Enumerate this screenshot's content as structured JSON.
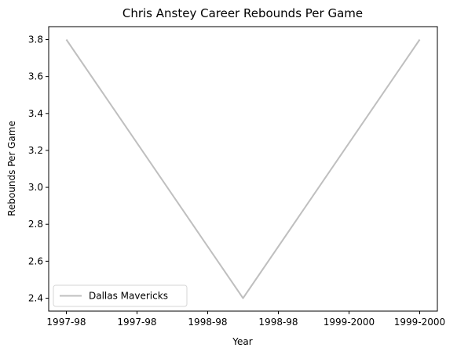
{
  "chart_data": {
    "type": "line",
    "title": "Chris Anstey Career Rebounds Per Game",
    "xlabel": "Year",
    "ylabel": "Rebounds Per Game",
    "x_tick_labels": [
      "1997-98",
      "1997-98",
      "1998-98",
      "1998-98",
      "1999-2000",
      "1999-2000"
    ],
    "y_ticks": [
      2.4,
      2.6,
      2.8,
      3.0,
      3.2,
      3.4,
      3.6,
      3.8
    ],
    "y_tick_labels": [
      "2.4",
      "2.6",
      "2.8",
      "3.0",
      "3.2",
      "3.4",
      "3.6",
      "3.8"
    ],
    "ylim": [
      2.33,
      3.87
    ],
    "xlim": [
      -0.1,
      2.1
    ],
    "grid": false,
    "legend_position": "lower-left",
    "series": [
      {
        "name": "Dallas Mavericks",
        "color": "#bfbfbf",
        "x": [
          0,
          1,
          2
        ],
        "values": [
          3.8,
          2.4,
          3.8
        ]
      }
    ]
  }
}
